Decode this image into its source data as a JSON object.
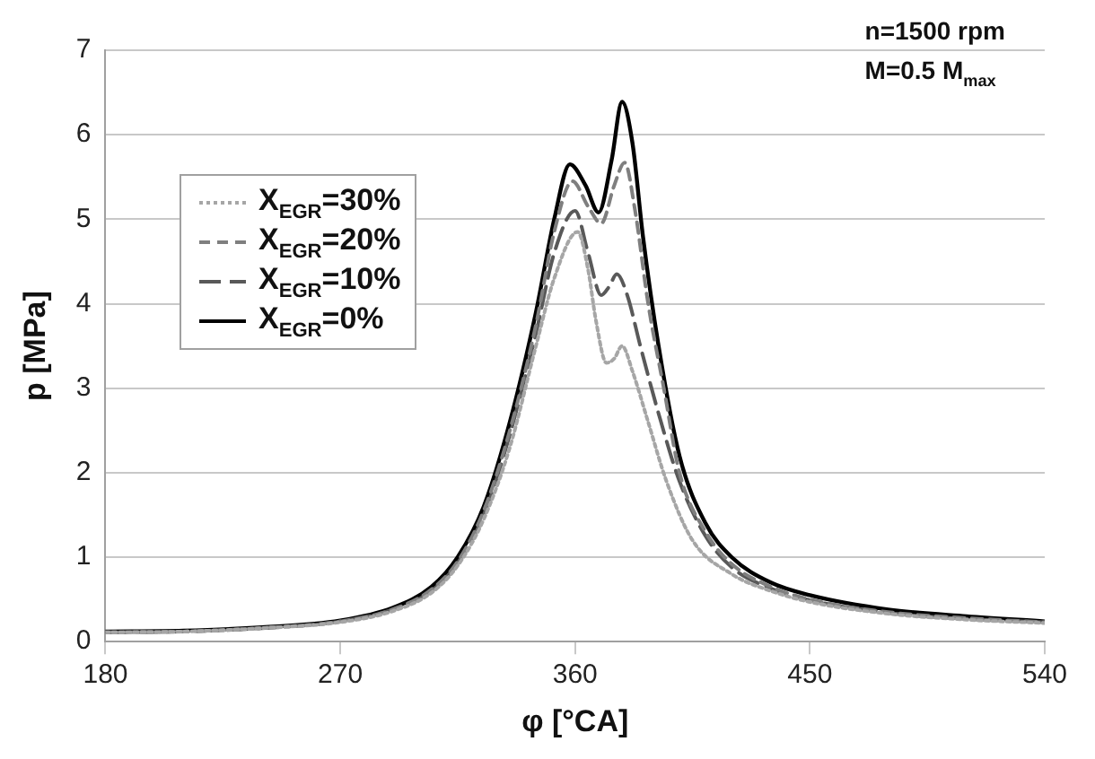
{
  "chart_data": {
    "type": "line",
    "xlabel": "φ [°CA]",
    "ylabel": "p [MPa]",
    "xlim": [
      180,
      540
    ],
    "xticks": [
      180,
      270,
      360,
      450,
      540
    ],
    "ylim": [
      0,
      7
    ],
    "yticks": [
      0,
      1,
      2,
      3,
      4,
      5,
      6,
      7
    ],
    "grid": "y",
    "legend": "top left",
    "marker": "none",
    "annotations": [
      "n=1500 rpm",
      "M=0.5 M$_{max}$"
    ],
    "series": [
      {
        "name": "X$_{EGR}$=30%",
        "color": "#a6a6a6",
        "line_style": "dotted",
        "x": [
          180,
          210,
          240,
          270,
          290,
          305,
          315,
          325,
          335,
          345,
          352,
          361,
          365,
          368,
          372,
          375,
          378,
          382,
          388,
          395,
          405,
          420,
          435,
          450,
          480,
          510,
          540
        ],
        "values": [
          0.11,
          0.12,
          0.16,
          0.23,
          0.36,
          0.58,
          0.9,
          1.45,
          2.3,
          3.5,
          4.3,
          4.85,
          4.4,
          3.8,
          3.3,
          3.35,
          3.5,
          3.2,
          2.6,
          1.9,
          1.2,
          0.8,
          0.6,
          0.47,
          0.33,
          0.26,
          0.22
        ]
      },
      {
        "name": "X$_{EGR}$=20%",
        "color": "#7f7f7f",
        "line_style": "dashed",
        "x": [
          180,
          210,
          240,
          270,
          290,
          305,
          315,
          325,
          335,
          345,
          352,
          359,
          365,
          370,
          375,
          379,
          383,
          388,
          394,
          400,
          410,
          420,
          435,
          450,
          480,
          510,
          540
        ],
        "values": [
          0.11,
          0.12,
          0.16,
          0.24,
          0.38,
          0.62,
          0.95,
          1.55,
          2.5,
          3.75,
          4.85,
          5.45,
          5.15,
          4.95,
          5.4,
          5.67,
          5.1,
          4.0,
          3.0,
          2.0,
          1.3,
          0.92,
          0.65,
          0.5,
          0.35,
          0.28,
          0.23
        ]
      },
      {
        "name": "X$_{EGR}$=10%",
        "color": "#595959",
        "line_style": "long dashed",
        "x": [
          180,
          210,
          240,
          270,
          290,
          305,
          315,
          325,
          335,
          345,
          352,
          360,
          365,
          370,
          373,
          376,
          380,
          385,
          392,
          400,
          410,
          420,
          435,
          450,
          480,
          510,
          540
        ],
        "values": [
          0.11,
          0.12,
          0.16,
          0.24,
          0.38,
          0.6,
          0.93,
          1.5,
          2.45,
          3.65,
          4.6,
          5.1,
          4.6,
          4.1,
          4.2,
          4.35,
          4.1,
          3.5,
          2.7,
          1.9,
          1.25,
          0.88,
          0.63,
          0.49,
          0.34,
          0.27,
          0.23
        ]
      },
      {
        "name": "X$_{EGR}$=0%",
        "color": "#000000",
        "line_style": "solid",
        "x": [
          180,
          210,
          240,
          270,
          290,
          305,
          315,
          325,
          335,
          345,
          352,
          358,
          364,
          369,
          374,
          378,
          382,
          386,
          392,
          400,
          410,
          420,
          435,
          450,
          480,
          510,
          540
        ],
        "values": [
          0.12,
          0.13,
          0.17,
          0.25,
          0.4,
          0.65,
          1.0,
          1.6,
          2.6,
          3.9,
          5.0,
          5.65,
          5.4,
          5.08,
          5.7,
          6.39,
          5.9,
          4.8,
          3.5,
          2.2,
          1.4,
          1.0,
          0.7,
          0.55,
          0.38,
          0.3,
          0.24
        ]
      }
    ]
  }
}
